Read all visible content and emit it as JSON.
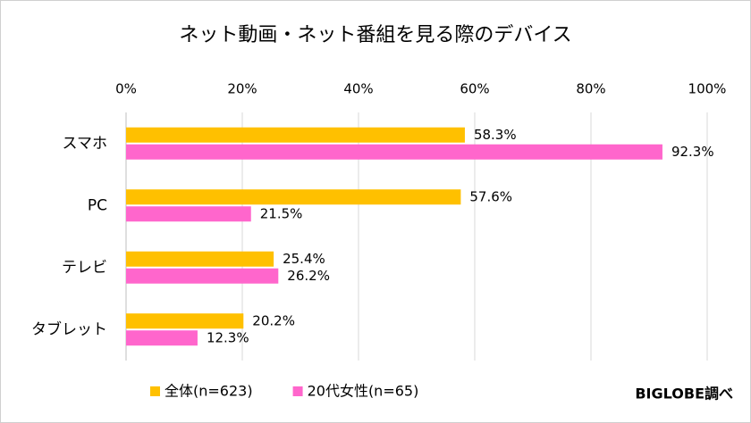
{
  "chart_data": {
    "type": "bar",
    "orientation": "horizontal",
    "title": "ネット動画・ネット番組を見る際のデバイス",
    "categories": [
      "スマホ",
      "PC",
      "テレビ",
      "タブレット"
    ],
    "series": [
      {
        "name": "全体(n=623)",
        "color": "#FFC000",
        "values": [
          58.3,
          57.6,
          25.4,
          20.2
        ],
        "value_labels": [
          "58.3%",
          "57.6%",
          "25.4%",
          "20.2%"
        ],
        "value_label_colors": [
          "#000000",
          "#000000",
          "#000000",
          "#000000"
        ]
      },
      {
        "name": "20代女性(n=65)",
        "color": "#FF66CC",
        "values": [
          92.3,
          21.5,
          26.2,
          12.3
        ],
        "value_labels": [
          "92.3%",
          "21.5%",
          "26.2%",
          "12.3%"
        ],
        "value_label_colors": [
          "#FF0000",
          "#000000",
          "#000000",
          "#000000"
        ]
      }
    ],
    "xlim": [
      0,
      100
    ],
    "xticks": [
      {
        "value": 0,
        "label": "0%"
      },
      {
        "value": 20,
        "label": "20%"
      },
      {
        "value": 40,
        "label": "40%"
      },
      {
        "value": 60,
        "label": "60%"
      },
      {
        "value": 80,
        "label": "80%"
      },
      {
        "value": 100,
        "label": "100%"
      }
    ],
    "grid": true,
    "legend": "bottom",
    "source": "BIGLOBE調べ"
  }
}
